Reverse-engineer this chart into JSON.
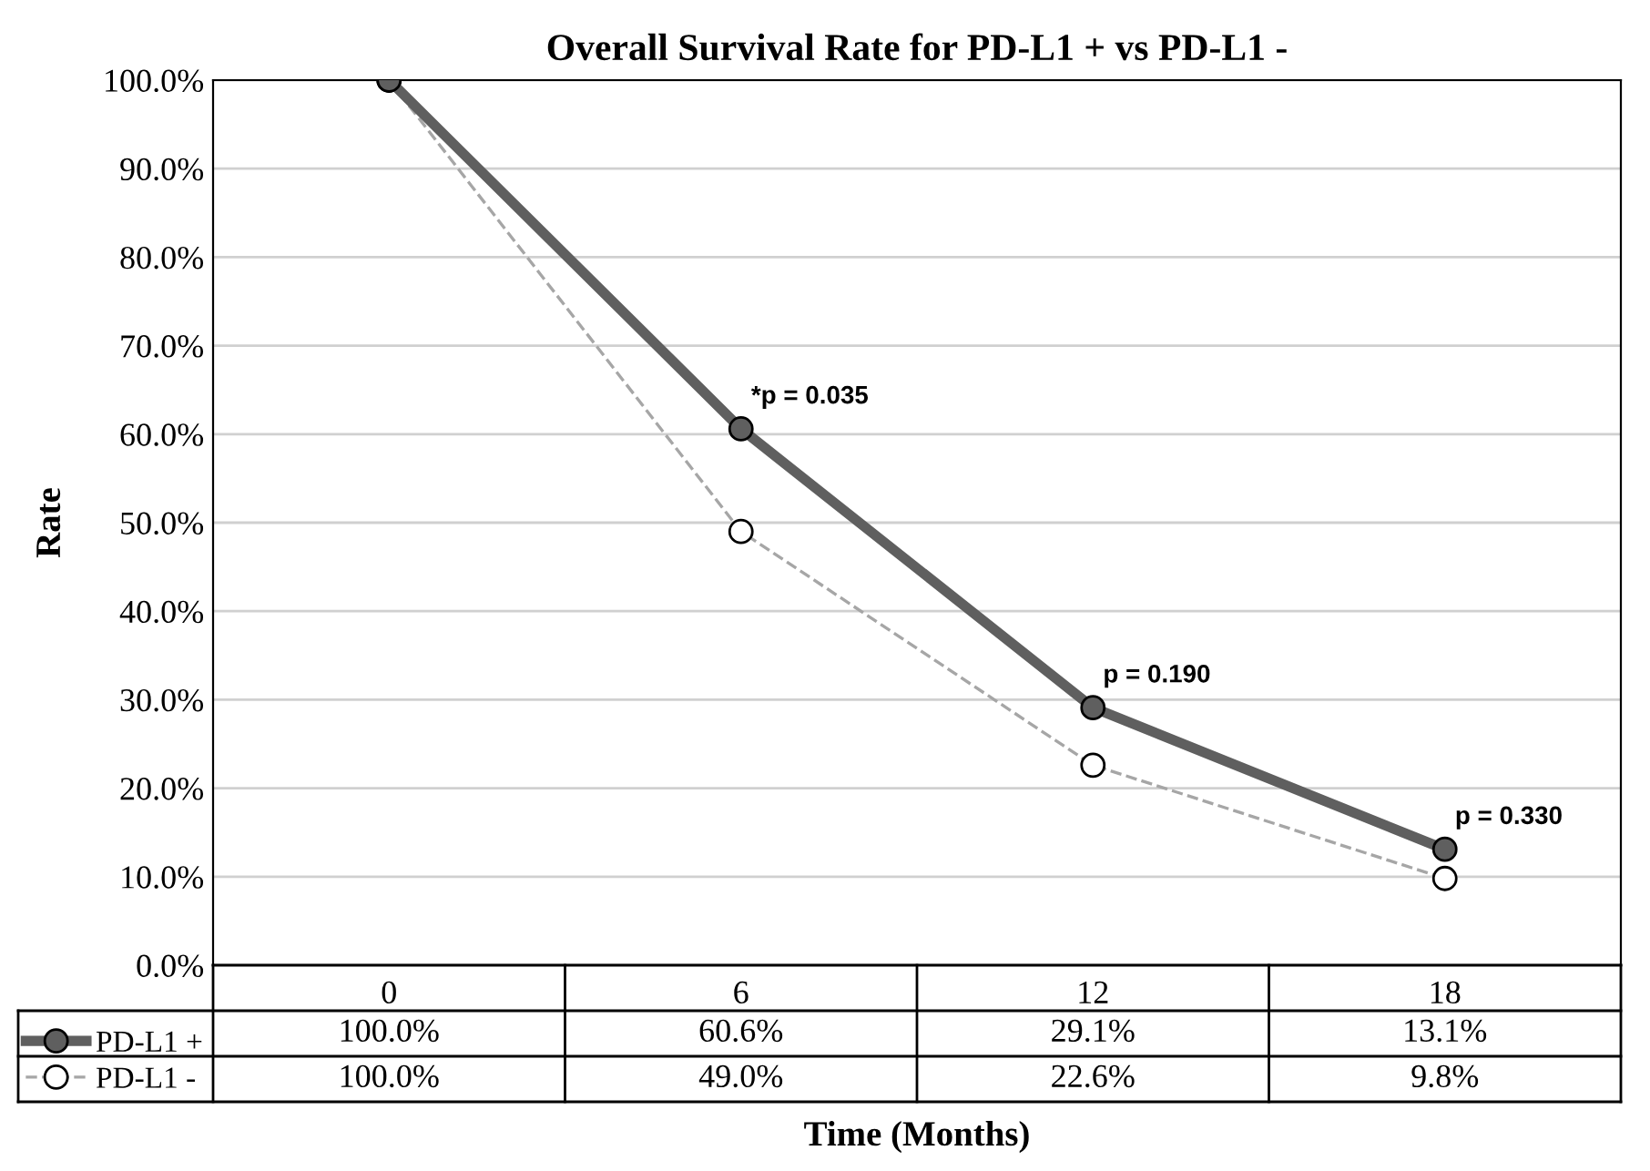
{
  "chart_data": {
    "type": "line",
    "title": "Overall Survival Rate for PD-L1 + vs PD-L1 -",
    "xlabel": "Time (Months)",
    "ylabel": "Rate",
    "categories": [
      "0",
      "6",
      "12",
      "18"
    ],
    "series": [
      {
        "name": "PD-L1 +",
        "color": "#5f5f5f",
        "line_style": "solid",
        "marker": "circle",
        "values": [
          100.0,
          60.6,
          29.1,
          13.1
        ],
        "value_labels": [
          "100.0%",
          "60.6%",
          "29.1%",
          "13.1%"
        ]
      },
      {
        "name": "PD-L1 -",
        "color": "#a6a6a6",
        "line_style": "dashed",
        "marker": "circle",
        "values": [
          100.0,
          49.0,
          22.6,
          9.8
        ],
        "value_labels": [
          "100.0%",
          "49.0%",
          "22.6%",
          "9.8%"
        ]
      }
    ],
    "ylim": [
      0,
      100
    ],
    "yticks": [
      {
        "value": 0,
        "label": "0.0%"
      },
      {
        "value": 10,
        "label": "10.0%"
      },
      {
        "value": 20,
        "label": "20.0%"
      },
      {
        "value": 30,
        "label": "30.0%"
      },
      {
        "value": 40,
        "label": "40.0%"
      },
      {
        "value": 50,
        "label": "50.0%"
      },
      {
        "value": 60,
        "label": "60.0%"
      },
      {
        "value": 70,
        "label": "70.0%"
      },
      {
        "value": 80,
        "label": "80.0%"
      },
      {
        "value": 90,
        "label": "90.0%"
      },
      {
        "value": 100,
        "label": "100.0%"
      }
    ],
    "grid": "y",
    "legend": "bottom left",
    "annotations": [
      {
        "text": "*p = 0.035",
        "x": "6",
        "y": 60.6
      },
      {
        "text": "p = 0.190",
        "x": "12",
        "y": 29.1
      },
      {
        "text": "p = 0.330",
        "x": "18",
        "y": 13.1
      }
    ]
  }
}
